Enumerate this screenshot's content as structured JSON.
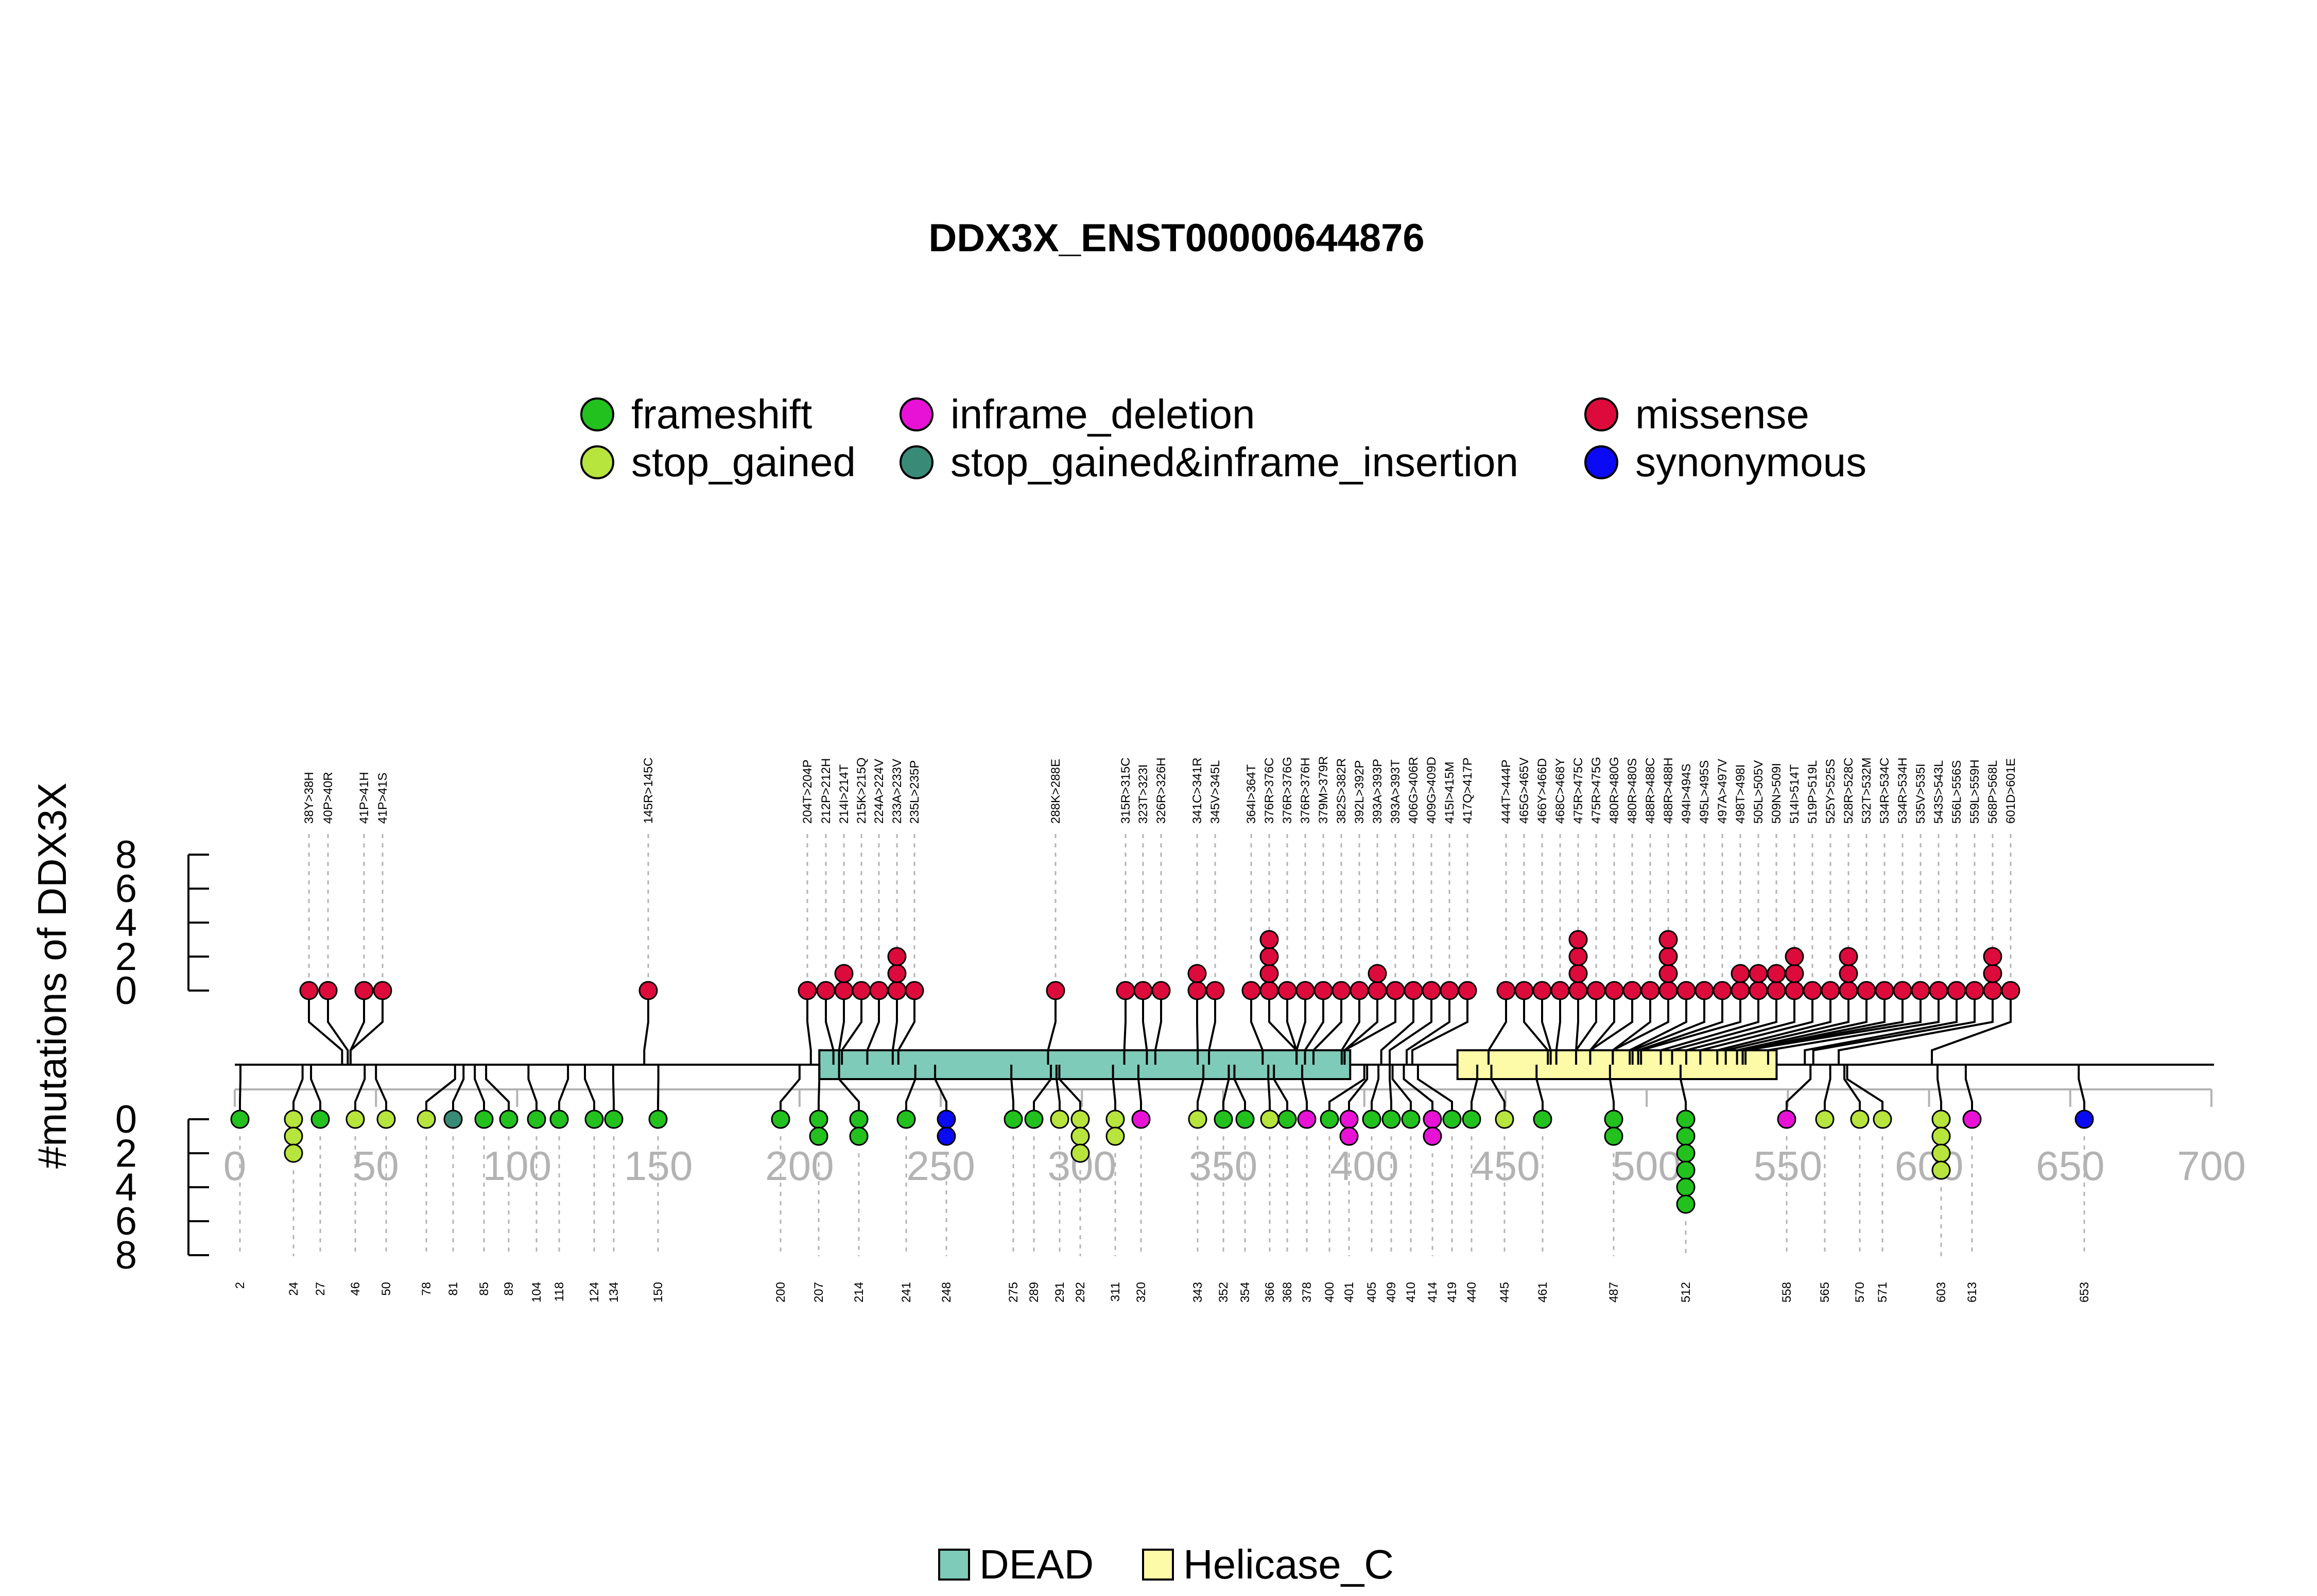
{
  "chart_data": {
    "type": "lollipop",
    "title": "DDX3X_ENST00000644876",
    "ylabel": "#mutations of DDX3X",
    "xlim": [
      0,
      700
    ],
    "ylim_upper": [
      0,
      8
    ],
    "ylim_lower": [
      0,
      8
    ],
    "x_ticks": [
      0,
      50,
      100,
      150,
      200,
      250,
      300,
      350,
      400,
      450,
      500,
      550,
      600,
      650,
      700
    ],
    "y_ticks": [
      0,
      2,
      4,
      6,
      8
    ],
    "legend": [
      {
        "key": "frameshift",
        "label": "frameshift",
        "color": "#22c11e"
      },
      {
        "key": "stop_gained",
        "label": "stop_gained",
        "color": "#b7e43d"
      },
      {
        "key": "inframe_deletion",
        "label": "inframe_deletion",
        "color": "#e812d6"
      },
      {
        "key": "stop_gained_inframe_insertion",
        "label": "stop_gained&inframe_insertion",
        "color": "#3a8a78"
      },
      {
        "key": "missense",
        "label": "missense",
        "color": "#dd0a3c"
      },
      {
        "key": "synonymous",
        "label": "synonymous",
        "color": "#0a0af5"
      }
    ],
    "domains": [
      {
        "name": "DEAD",
        "start": 207,
        "end": 395,
        "color": "#7fcbb9"
      },
      {
        "name": "Helicase_C",
        "start": 433,
        "end": 546,
        "color": "#fdfba8"
      }
    ],
    "upper": [
      {
        "label": "38Y>38H",
        "pos": 38,
        "count": 1,
        "type": "missense"
      },
      {
        "label": "40P>40R",
        "pos": 40,
        "count": 1,
        "type": "missense"
      },
      {
        "label": "41P>41H",
        "pos": 41,
        "count": 1,
        "type": "missense"
      },
      {
        "label": "41P>41S",
        "pos": 41,
        "count": 1,
        "type": "missense"
      },
      {
        "label": "145R>145C",
        "pos": 145,
        "count": 1,
        "type": "missense"
      },
      {
        "label": "204T>204P",
        "pos": 204,
        "count": 1,
        "type": "missense"
      },
      {
        "label": "212P>212H",
        "pos": 212,
        "count": 1,
        "type": "missense"
      },
      {
        "label": "214I>214T",
        "pos": 214,
        "count": 2,
        "type": "missense"
      },
      {
        "label": "215K>215Q",
        "pos": 215,
        "count": 1,
        "type": "missense"
      },
      {
        "label": "224A>224V",
        "pos": 224,
        "count": 1,
        "type": "missense"
      },
      {
        "label": "233A>233V",
        "pos": 233,
        "count": 3,
        "type": "missense"
      },
      {
        "label": "235L>235P",
        "pos": 235,
        "count": 1,
        "type": "missense"
      },
      {
        "label": "288K>288E",
        "pos": 288,
        "count": 1,
        "type": "missense"
      },
      {
        "label": "315R>315C",
        "pos": 315,
        "count": 1,
        "type": "missense"
      },
      {
        "label": "323T>323I",
        "pos": 323,
        "count": 1,
        "type": "missense"
      },
      {
        "label": "326R>326H",
        "pos": 326,
        "count": 1,
        "type": "missense"
      },
      {
        "label": "341C>341R",
        "pos": 341,
        "count": 2,
        "type": "missense"
      },
      {
        "label": "345V>345L",
        "pos": 345,
        "count": 1,
        "type": "missense"
      },
      {
        "label": "364I>364T",
        "pos": 364,
        "count": 1,
        "type": "missense"
      },
      {
        "label": "376R>376C",
        "pos": 376,
        "count": 4,
        "type": "missense"
      },
      {
        "label": "376R>376G",
        "pos": 376,
        "count": 1,
        "type": "missense"
      },
      {
        "label": "376R>376H",
        "pos": 376,
        "count": 1,
        "type": "missense"
      },
      {
        "label": "379M>379R",
        "pos": 379,
        "count": 1,
        "type": "missense"
      },
      {
        "label": "382S>382R",
        "pos": 382,
        "count": 1,
        "type": "missense"
      },
      {
        "label": "392L>392P",
        "pos": 392,
        "count": 1,
        "type": "missense"
      },
      {
        "label": "393A>393P",
        "pos": 393,
        "count": 2,
        "type": "missense"
      },
      {
        "label": "393A>393T",
        "pos": 393,
        "count": 1,
        "type": "missense"
      },
      {
        "label": "406G>406R",
        "pos": 406,
        "count": 1,
        "type": "missense"
      },
      {
        "label": "409G>409D",
        "pos": 409,
        "count": 1,
        "type": "missense"
      },
      {
        "label": "415I>415M",
        "pos": 415,
        "count": 1,
        "type": "missense"
      },
      {
        "label": "417Q>417P",
        "pos": 417,
        "count": 1,
        "type": "missense"
      },
      {
        "label": "444T>444P",
        "pos": 444,
        "count": 1,
        "type": "missense"
      },
      {
        "label": "465G>465V",
        "pos": 465,
        "count": 1,
        "type": "missense"
      },
      {
        "label": "466Y>466D",
        "pos": 466,
        "count": 1,
        "type": "missense"
      },
      {
        "label": "468C>468Y",
        "pos": 468,
        "count": 1,
        "type": "missense"
      },
      {
        "label": "475R>475C",
        "pos": 475,
        "count": 4,
        "type": "missense"
      },
      {
        "label": "475R>475G",
        "pos": 475,
        "count": 1,
        "type": "missense"
      },
      {
        "label": "480R>480G",
        "pos": 480,
        "count": 1,
        "type": "missense"
      },
      {
        "label": "480R>480S",
        "pos": 480,
        "count": 1,
        "type": "missense"
      },
      {
        "label": "488R>488C",
        "pos": 488,
        "count": 1,
        "type": "missense"
      },
      {
        "label": "488R>488H",
        "pos": 488,
        "count": 4,
        "type": "missense"
      },
      {
        "label": "494I>494S",
        "pos": 494,
        "count": 1,
        "type": "missense"
      },
      {
        "label": "495L>495S",
        "pos": 495,
        "count": 1,
        "type": "missense"
      },
      {
        "label": "497A>497V",
        "pos": 497,
        "count": 1,
        "type": "missense"
      },
      {
        "label": "498T>498I",
        "pos": 498,
        "count": 2,
        "type": "missense"
      },
      {
        "label": "505L>505V",
        "pos": 505,
        "count": 2,
        "type": "missense"
      },
      {
        "label": "509N>509I",
        "pos": 509,
        "count": 2,
        "type": "missense"
      },
      {
        "label": "514I>514T",
        "pos": 514,
        "count": 3,
        "type": "missense"
      },
      {
        "label": "519P>519L",
        "pos": 519,
        "count": 1,
        "type": "missense"
      },
      {
        "label": "525Y>525S",
        "pos": 525,
        "count": 1,
        "type": "missense"
      },
      {
        "label": "528R>528C",
        "pos": 528,
        "count": 3,
        "type": "missense"
      },
      {
        "label": "532T>532M",
        "pos": 532,
        "count": 1,
        "type": "missense"
      },
      {
        "label": "534R>534C",
        "pos": 534,
        "count": 1,
        "type": "missense"
      },
      {
        "label": "534R>534H",
        "pos": 534,
        "count": 1,
        "type": "missense"
      },
      {
        "label": "535V>535I",
        "pos": 535,
        "count": 1,
        "type": "missense"
      },
      {
        "label": "543S>543L",
        "pos": 543,
        "count": 1,
        "type": "missense"
      },
      {
        "label": "556L>556S",
        "pos": 556,
        "count": 1,
        "type": "missense"
      },
      {
        "label": "559L>559H",
        "pos": 559,
        "count": 1,
        "type": "missense"
      },
      {
        "label": "568P>568L",
        "pos": 568,
        "count": 3,
        "type": "missense"
      },
      {
        "label": "601D>601E",
        "pos": 601,
        "count": 1,
        "type": "missense"
      }
    ],
    "lower": [
      {
        "label": "2",
        "pos": 2,
        "count": 1,
        "type": "frameshift"
      },
      {
        "label": "24",
        "pos": 24,
        "count": 3,
        "type": "stop_gained"
      },
      {
        "label": "27",
        "pos": 27,
        "count": 1,
        "type": "frameshift"
      },
      {
        "label": "46",
        "pos": 46,
        "count": 1,
        "type": "stop_gained"
      },
      {
        "label": "50",
        "pos": 50,
        "count": 1,
        "type": "stop_gained"
      },
      {
        "label": "78",
        "pos": 78,
        "count": 1,
        "type": "stop_gained"
      },
      {
        "label": "81",
        "pos": 81,
        "count": 1,
        "type": "stop_gained_inframe_insertion"
      },
      {
        "label": "85",
        "pos": 85,
        "count": 1,
        "type": "frameshift"
      },
      {
        "label": "89",
        "pos": 89,
        "count": 1,
        "type": "frameshift"
      },
      {
        "label": "104",
        "pos": 104,
        "count": 1,
        "type": "frameshift"
      },
      {
        "label": "118",
        "pos": 118,
        "count": 1,
        "type": "frameshift"
      },
      {
        "label": "124",
        "pos": 124,
        "count": 1,
        "type": "frameshift"
      },
      {
        "label": "134",
        "pos": 134,
        "count": 1,
        "type": "frameshift"
      },
      {
        "label": "150",
        "pos": 150,
        "count": 1,
        "type": "frameshift"
      },
      {
        "label": "200",
        "pos": 200,
        "count": 1,
        "type": "frameshift"
      },
      {
        "label": "207",
        "pos": 207,
        "count": 2,
        "type": "frameshift"
      },
      {
        "label": "214",
        "pos": 214,
        "count": 2,
        "type": "frameshift"
      },
      {
        "label": "241",
        "pos": 241,
        "count": 1,
        "type": "frameshift"
      },
      {
        "label": "248",
        "pos": 248,
        "count": 2,
        "type": "synonymous"
      },
      {
        "label": "275",
        "pos": 275,
        "count": 1,
        "type": "frameshift"
      },
      {
        "label": "289",
        "pos": 289,
        "count": 1,
        "type": "frameshift"
      },
      {
        "label": "291",
        "pos": 291,
        "count": 1,
        "type": "stop_gained"
      },
      {
        "label": "292",
        "pos": 292,
        "count": 3,
        "type": "stop_gained"
      },
      {
        "label": "311",
        "pos": 311,
        "count": 2,
        "type": "stop_gained"
      },
      {
        "label": "320",
        "pos": 320,
        "count": 1,
        "type": "inframe_deletion"
      },
      {
        "label": "343",
        "pos": 343,
        "count": 1,
        "type": "stop_gained"
      },
      {
        "label": "352",
        "pos": 352,
        "count": 1,
        "type": "frameshift"
      },
      {
        "label": "354",
        "pos": 354,
        "count": 1,
        "type": "frameshift"
      },
      {
        "label": "366",
        "pos": 366,
        "count": 1,
        "type": "stop_gained"
      },
      {
        "label": "368",
        "pos": 368,
        "count": 1,
        "type": "frameshift"
      },
      {
        "label": "378",
        "pos": 378,
        "count": 1,
        "type": "inframe_deletion"
      },
      {
        "label": "400",
        "pos": 400,
        "count": 1,
        "type": "frameshift"
      },
      {
        "label": "401",
        "pos": 401,
        "count": 2,
        "type": "inframe_deletion"
      },
      {
        "label": "405",
        "pos": 405,
        "count": 1,
        "type": "frameshift"
      },
      {
        "label": "409",
        "pos": 409,
        "count": 1,
        "type": "frameshift"
      },
      {
        "label": "410",
        "pos": 410,
        "count": 1,
        "type": "frameshift"
      },
      {
        "label": "414",
        "pos": 414,
        "count": 2,
        "type": "inframe_deletion"
      },
      {
        "label": "419",
        "pos": 419,
        "count": 1,
        "type": "frameshift"
      },
      {
        "label": "440",
        "pos": 440,
        "count": 1,
        "type": "frameshift"
      },
      {
        "label": "445",
        "pos": 445,
        "count": 1,
        "type": "stop_gained"
      },
      {
        "label": "461",
        "pos": 461,
        "count": 1,
        "type": "frameshift"
      },
      {
        "label": "487",
        "pos": 487,
        "count": 2,
        "type": "frameshift"
      },
      {
        "label": "512",
        "pos": 512,
        "count": 6,
        "type": "frameshift"
      },
      {
        "label": "558",
        "pos": 558,
        "count": 1,
        "type": "inframe_deletion"
      },
      {
        "label": "565",
        "pos": 565,
        "count": 1,
        "type": "stop_gained"
      },
      {
        "label": "570",
        "pos": 570,
        "count": 1,
        "type": "stop_gained"
      },
      {
        "label": "571",
        "pos": 571,
        "count": 1,
        "type": "stop_gained"
      },
      {
        "label": "603",
        "pos": 603,
        "count": 4,
        "type": "stop_gained"
      },
      {
        "label": "613",
        "pos": 613,
        "count": 1,
        "type": "inframe_deletion"
      },
      {
        "label": "653",
        "pos": 653,
        "count": 1,
        "type": "synonymous"
      }
    ]
  }
}
